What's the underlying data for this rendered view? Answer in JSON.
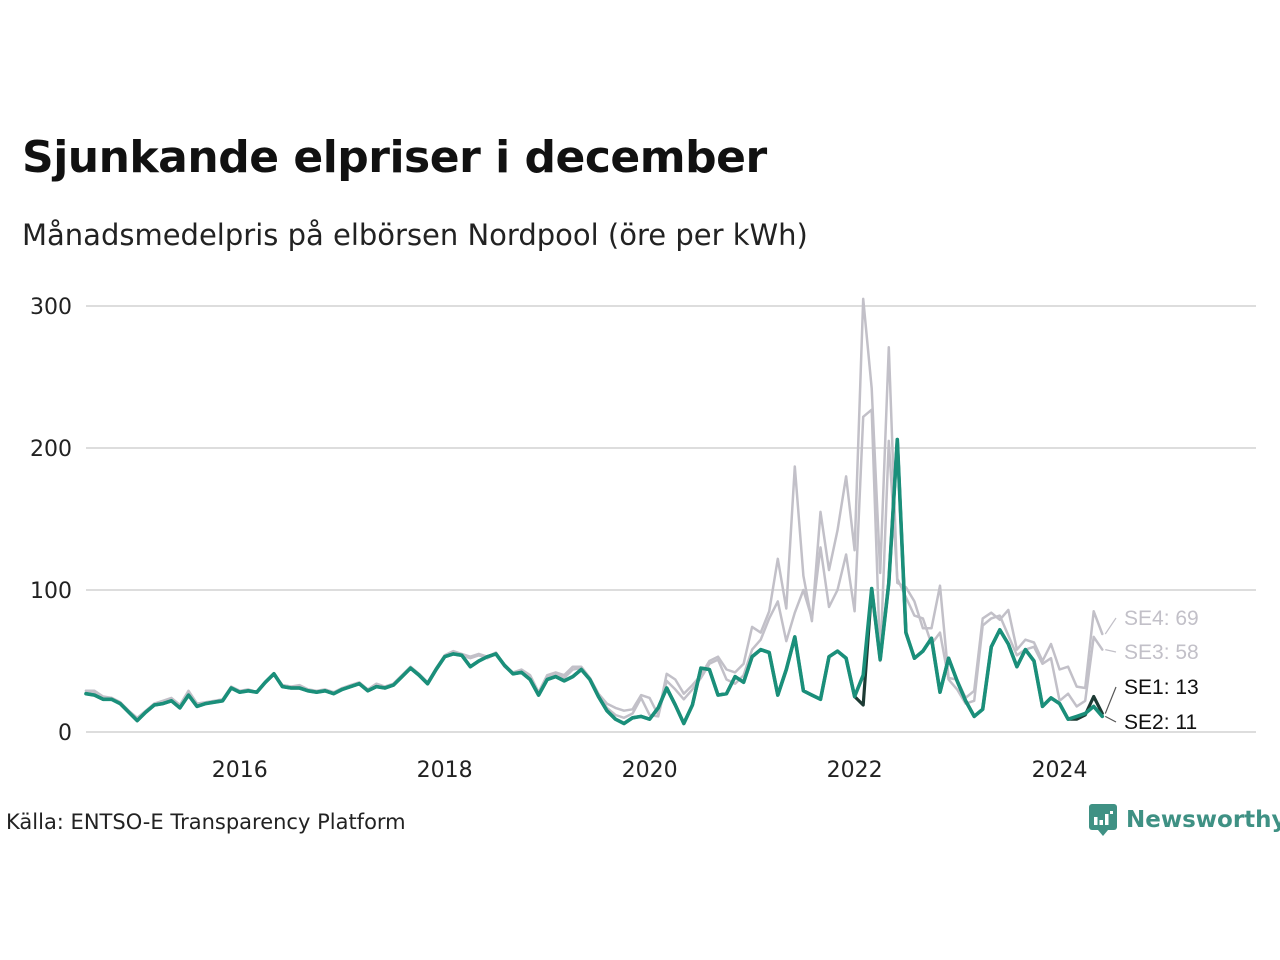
{
  "title": "Sjunkande elpriser i december",
  "subtitle": "Månadsmedelpris på elbörsen Nordpool (öre per kWh)",
  "source": "Källa: ENTSO-E Transparency Platform",
  "brand": {
    "name": "Newsworthy",
    "icon": "newsworthy-logo-icon"
  },
  "colors": {
    "highlight": "#1a8f7a",
    "se1": "#1d3b34",
    "muted": "#c2c0c8",
    "grid": "#dddddd",
    "brand": "#3f9184"
  },
  "chart_data": {
    "type": "line",
    "title": "Sjunkande elpriser i december",
    "subtitle": "Månadsmedelpris på elbörsen Nordpool (öre per kWh)",
    "xlabel": "",
    "ylabel": "",
    "ylim": [
      0,
      300
    ],
    "yticks": [
      0,
      100,
      200,
      300
    ],
    "xticks": [
      "2016",
      "2018",
      "2020",
      "2022",
      "2024"
    ],
    "x_start": "2015-01",
    "x_end": "2024-12",
    "x": [
      "2015-01",
      "2015-02",
      "2015-03",
      "2015-04",
      "2015-05",
      "2015-06",
      "2015-07",
      "2015-08",
      "2015-09",
      "2015-10",
      "2015-11",
      "2015-12",
      "2016-01",
      "2016-02",
      "2016-03",
      "2016-04",
      "2016-05",
      "2016-06",
      "2016-07",
      "2016-08",
      "2016-09",
      "2016-10",
      "2016-11",
      "2016-12",
      "2017-01",
      "2017-02",
      "2017-03",
      "2017-04",
      "2017-05",
      "2017-06",
      "2017-07",
      "2017-08",
      "2017-09",
      "2017-10",
      "2017-11",
      "2017-12",
      "2018-01",
      "2018-02",
      "2018-03",
      "2018-04",
      "2018-05",
      "2018-06",
      "2018-07",
      "2018-08",
      "2018-09",
      "2018-10",
      "2018-11",
      "2018-12",
      "2019-01",
      "2019-02",
      "2019-03",
      "2019-04",
      "2019-05",
      "2019-06",
      "2019-07",
      "2019-08",
      "2019-09",
      "2019-10",
      "2019-11",
      "2019-12",
      "2020-01",
      "2020-02",
      "2020-03",
      "2020-04",
      "2020-05",
      "2020-06",
      "2020-07",
      "2020-08",
      "2020-09",
      "2020-10",
      "2020-11",
      "2020-12",
      "2021-01",
      "2021-02",
      "2021-03",
      "2021-04",
      "2021-05",
      "2021-06",
      "2021-07",
      "2021-08",
      "2021-09",
      "2021-10",
      "2021-11",
      "2021-12",
      "2022-01",
      "2022-02",
      "2022-03",
      "2022-04",
      "2022-05",
      "2022-06",
      "2022-07",
      "2022-08",
      "2022-09",
      "2022-10",
      "2022-11",
      "2022-12",
      "2023-01",
      "2023-02",
      "2023-03",
      "2023-04",
      "2023-05",
      "2023-06",
      "2023-07",
      "2023-08",
      "2023-09",
      "2023-10",
      "2023-11",
      "2023-12",
      "2024-01",
      "2024-02",
      "2024-03",
      "2024-04",
      "2024-05",
      "2024-06",
      "2024-07",
      "2024-08",
      "2024-09",
      "2024-10",
      "2024-11",
      "2024-12"
    ],
    "series": [
      {
        "name": "SE4",
        "label": "SE4: 69",
        "color": "#c2c0c8",
        "values": [
          29,
          29,
          25,
          24,
          21,
          15,
          10,
          15,
          20,
          22,
          24,
          19,
          29,
          20,
          21,
          22,
          23,
          32,
          29,
          30,
          28,
          35,
          41,
          33,
          32,
          33,
          30,
          29,
          30,
          28,
          31,
          33,
          35,
          30,
          34,
          32,
          34,
          40,
          46,
          41,
          35,
          45,
          54,
          57,
          55,
          53,
          55,
          53,
          56,
          47,
          42,
          44,
          40,
          28,
          40,
          42,
          40,
          46,
          46,
          38,
          27,
          20,
          17,
          15,
          16,
          26,
          24,
          12,
          41,
          37,
          27,
          33,
          40,
          50,
          53,
          44,
          42,
          48,
          74,
          70,
          85,
          122,
          87,
          187,
          110,
          78,
          155,
          114,
          142,
          180,
          128,
          305,
          242,
          112,
          271,
          105,
          102,
          92,
          73,
          73,
          103,
          38,
          37,
          24,
          29,
          80,
          84,
          79,
          86,
          58,
          65,
          63,
          50,
          62,
          44,
          46,
          32,
          31,
          85,
          69
        ]
      },
      {
        "name": "SE3",
        "label": "SE3: 58",
        "color": "#c2c0c8",
        "values": [
          29,
          28,
          24,
          24,
          21,
          15,
          9,
          14,
          20,
          21,
          23,
          18,
          28,
          19,
          20,
          21,
          22,
          31,
          28,
          29,
          28,
          35,
          40,
          33,
          32,
          32,
          29,
          28,
          29,
          27,
          30,
          32,
          34,
          29,
          33,
          31,
          33,
          39,
          45,
          40,
          34,
          44,
          53,
          56,
          54,
          52,
          54,
          52,
          55,
          46,
          41,
          43,
          39,
          27,
          39,
          41,
          38,
          44,
          45,
          38,
          27,
          17,
          12,
          10,
          13,
          24,
          12,
          11,
          36,
          30,
          23,
          30,
          38,
          48,
          51,
          37,
          34,
          40,
          58,
          65,
          80,
          92,
          64,
          84,
          100,
          80,
          130,
          88,
          100,
          125,
          85,
          222,
          227,
          50,
          205,
          108,
          95,
          82,
          80,
          62,
          70,
          37,
          30,
          20,
          22,
          75,
          80,
          82,
          68,
          54,
          58,
          60,
          48,
          52,
          22,
          27,
          18,
          22,
          67,
          58
        ]
      },
      {
        "name": "SE1",
        "label": "SE1: 13",
        "color": "#1d3b34",
        "values": [
          27,
          26,
          23,
          23,
          20,
          14,
          8,
          14,
          19,
          20,
          22,
          17,
          26,
          18,
          20,
          21,
          22,
          31,
          28,
          29,
          28,
          35,
          41,
          32,
          31,
          31,
          29,
          28,
          29,
          27,
          30,
          32,
          34,
          29,
          32,
          31,
          33,
          39,
          45,
          40,
          34,
          44,
          53,
          55,
          54,
          46,
          50,
          53,
          55,
          47,
          41,
          42,
          37,
          26,
          37,
          39,
          36,
          39,
          44,
          37,
          25,
          15,
          9,
          6,
          10,
          11,
          9,
          17,
          31,
          19,
          6,
          19,
          45,
          44,
          26,
          27,
          39,
          35,
          53,
          58,
          56,
          26,
          44,
          67,
          29,
          26,
          23,
          53,
          57,
          52,
          25,
          19,
          101,
          51,
          105,
          206,
          70,
          52,
          57,
          66,
          28,
          52,
          36,
          22,
          11,
          16,
          60,
          72,
          62,
          46,
          58,
          50,
          18,
          24,
          20,
          9,
          9,
          12,
          25,
          13
        ]
      },
      {
        "name": "SE2",
        "label": "SE2: 11",
        "color": "#1a8f7a",
        "values": [
          27,
          26,
          23,
          23,
          20,
          14,
          8,
          14,
          19,
          20,
          22,
          17,
          26,
          18,
          20,
          21,
          22,
          31,
          28,
          29,
          28,
          35,
          41,
          32,
          31,
          31,
          29,
          28,
          29,
          27,
          30,
          32,
          34,
          29,
          32,
          31,
          33,
          39,
          45,
          40,
          34,
          44,
          53,
          55,
          54,
          46,
          50,
          53,
          55,
          47,
          41,
          42,
          37,
          26,
          37,
          39,
          36,
          39,
          44,
          37,
          25,
          15,
          9,
          6,
          10,
          11,
          9,
          17,
          31,
          19,
          6,
          19,
          45,
          44,
          26,
          27,
          39,
          35,
          53,
          58,
          56,
          26,
          44,
          67,
          29,
          26,
          23,
          53,
          57,
          52,
          25,
          40,
          101,
          51,
          105,
          206,
          70,
          52,
          57,
          66,
          28,
          52,
          36,
          22,
          11,
          16,
          60,
          72,
          62,
          46,
          58,
          50,
          18,
          24,
          20,
          9,
          11,
          13,
          18,
          11
        ]
      }
    ],
    "grid": true,
    "legend": "direct labels at line ends"
  }
}
